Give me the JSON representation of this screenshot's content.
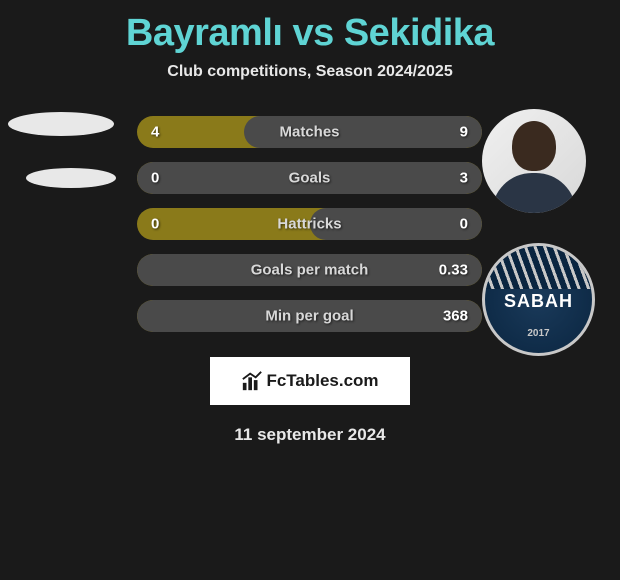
{
  "title": "Bayramlı vs Sekidika",
  "subtitle": "Club competitions, Season 2024/2025",
  "colors": {
    "background": "#1a1a1a",
    "title": "#5fd4d4",
    "bar_left": "#8a7a1a",
    "bar_right": "#4a4a4a",
    "text": "#e8e8e8"
  },
  "stats": [
    {
      "label": "Matches",
      "left_value": "4",
      "right_value": "9",
      "right_pct": 69
    },
    {
      "label": "Goals",
      "left_value": "0",
      "right_value": "3",
      "right_pct": 100
    },
    {
      "label": "Hattricks",
      "left_value": "0",
      "right_value": "0",
      "right_pct": 50
    },
    {
      "label": "Goals per match",
      "left_value": "",
      "right_value": "0.33",
      "right_pct": 100
    },
    {
      "label": "Min per goal",
      "left_value": "",
      "right_value": "368",
      "right_pct": 100
    }
  ],
  "badge": {
    "text": "SABAH",
    "year": "2017"
  },
  "branding": "FcTables.com",
  "date": "11 september 2024"
}
